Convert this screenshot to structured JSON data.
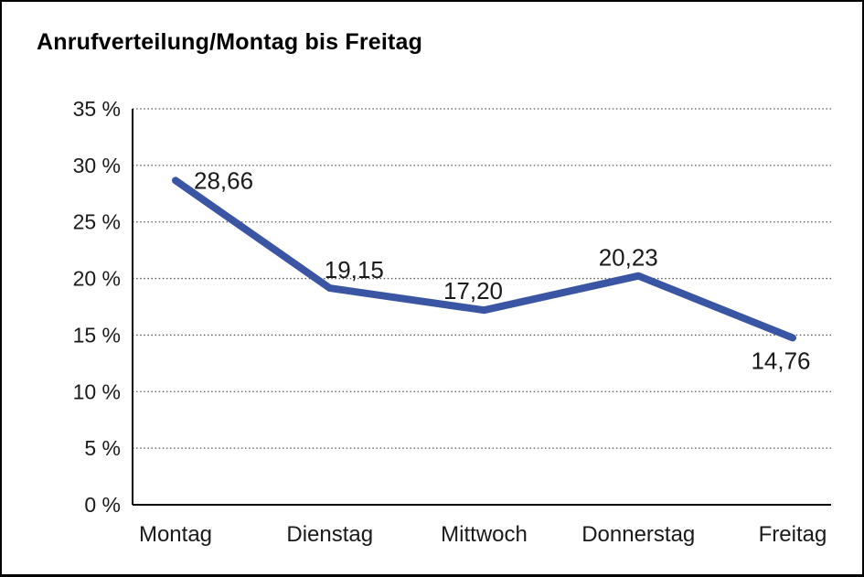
{
  "window": {
    "background_color": "#ffffff",
    "border_color": "#000000"
  },
  "chart_data": {
    "type": "line",
    "title": "Anrufverteilung/Montag bis Freitag",
    "categories": [
      "Montag",
      "Dienstag",
      "Mittwoch",
      "Donnerstag",
      "Freitag"
    ],
    "series": [
      {
        "name": "Anrufverteilung",
        "values": [
          28.66,
          19.15,
          17.2,
          20.23,
          14.76
        ],
        "point_labels": [
          "28,66",
          "19,15",
          "17,20",
          "20,23",
          "14,76"
        ],
        "color": "#3A55A4"
      }
    ],
    "xlabel": "",
    "ylabel": "",
    "ylim": [
      0,
      35
    ],
    "ytick_step": 5,
    "ytick_labels": [
      "0 %",
      "5 %",
      "10 %",
      "15 %",
      "20 %",
      "25 %",
      "30 %",
      "35 %"
    ],
    "grid": "horizontal-dotted",
    "gridline_color": "#555555",
    "axis_color": "#000000",
    "legend": "none"
  }
}
